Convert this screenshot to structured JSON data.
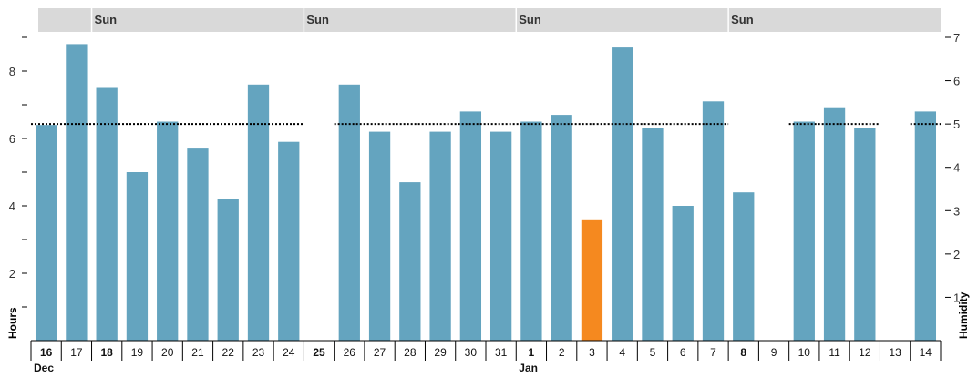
{
  "chart_data": {
    "type": "bar",
    "xlabel": "",
    "ylabel": "Hours",
    "y2label": "Humidity",
    "ylim": [
      0,
      9
    ],
    "y2lim": [
      0,
      7
    ],
    "yticks": [
      "2",
      "4",
      "6",
      "8"
    ],
    "y2ticks": [
      "1",
      "2",
      "3",
      "4",
      "5",
      "6",
      "7"
    ],
    "week_band_label": "Sun",
    "month_labels": [
      {
        "label": "Dec",
        "at_index": 0
      },
      {
        "label": "Jan",
        "at_index": 16
      }
    ],
    "categories": [
      "16",
      "17",
      "18",
      "19",
      "20",
      "21",
      "22",
      "23",
      "24",
      "25",
      "26",
      "27",
      "28",
      "29",
      "30",
      "31",
      "1",
      "2",
      "3",
      "4",
      "5",
      "6",
      "7",
      "8",
      "9",
      "10",
      "11",
      "12",
      "13",
      "14"
    ],
    "bold_categories": [
      "16",
      "18",
      "25",
      "1",
      "8"
    ],
    "sunday_indices": [
      2,
      9,
      16,
      23
    ],
    "values": [
      6.4,
      8.8,
      7.5,
      5.0,
      6.5,
      5.7,
      4.2,
      7.6,
      5.9,
      null,
      7.6,
      6.2,
      4.7,
      6.2,
      6.8,
      6.2,
      6.5,
      6.7,
      3.6,
      8.7,
      6.3,
      4.0,
      7.1,
      4.4,
      null,
      6.5,
      6.9,
      6.3,
      null,
      6.8
    ],
    "highlight_index": 18,
    "humidity_reference": {
      "value": 5,
      "segments": [
        [
          0,
          8
        ],
        [
          10,
          22
        ],
        [
          25,
          27
        ],
        [
          29,
          29
        ]
      ]
    },
    "colors": {
      "bar": "#64a4bf",
      "highlight": "#f5891f",
      "band": "#d9d9d9",
      "axis": "#000000"
    }
  }
}
